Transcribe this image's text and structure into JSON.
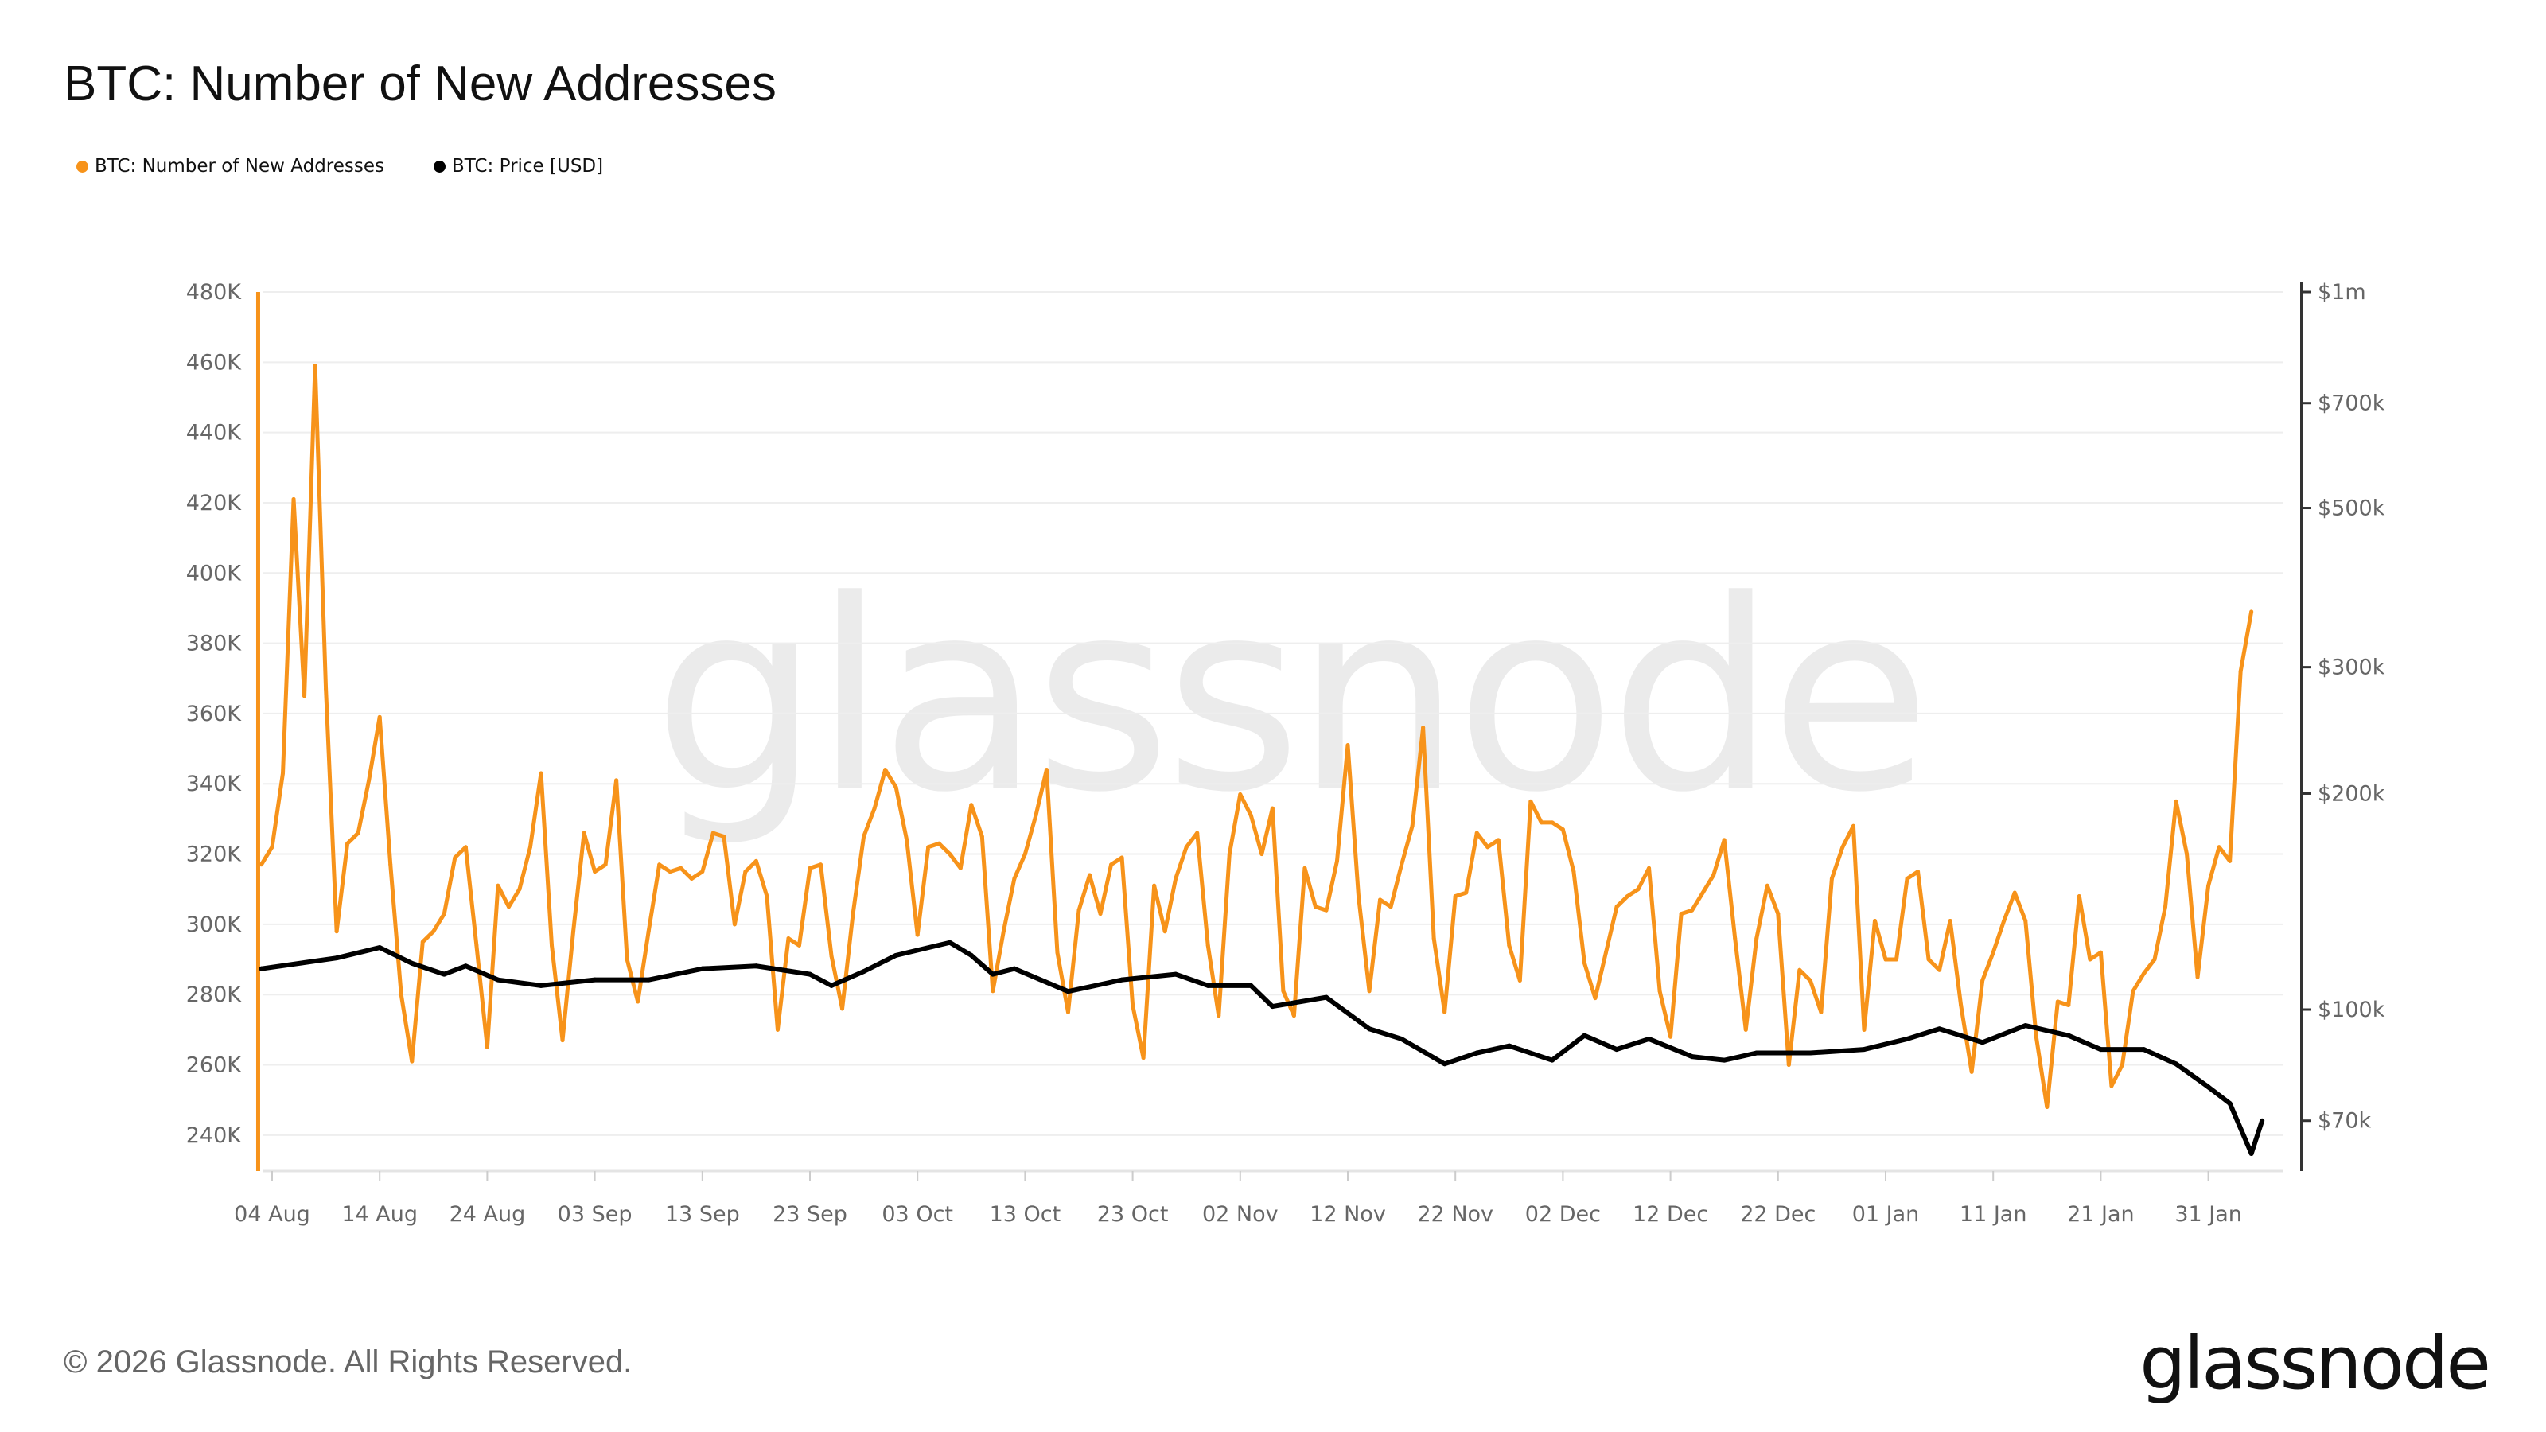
{
  "title": "BTC: Number of New Addresses",
  "legend": [
    {
      "label": "BTC: Number of New Addresses",
      "color": "#f7931a"
    },
    {
      "label": "BTC: Price [USD]",
      "color": "#000000"
    }
  ],
  "footer": {
    "copyright": "© 2026 Glassnode. All Rights Reserved.",
    "logo": "glassnode"
  },
  "watermark": "glassnode",
  "chart_data": {
    "type": "line",
    "title": "BTC: Number of New Addresses",
    "grid": true,
    "legend_position": "top-left",
    "x_tick_labels": [
      "04 Aug",
      "14 Aug",
      "24 Aug",
      "03 Sep",
      "13 Sep",
      "23 Sep",
      "03 Oct",
      "13 Oct",
      "23 Oct",
      "02 Nov",
      "12 Nov",
      "22 Nov",
      "02 Dec",
      "12 Dec",
      "22 Dec",
      "01 Jan",
      "11 Jan",
      "21 Jan",
      "31 Jan"
    ],
    "x_tick_dates": [
      "2025-08-04",
      "2025-08-14",
      "2025-08-24",
      "2025-09-03",
      "2025-09-13",
      "2025-09-23",
      "2025-10-03",
      "2025-10-13",
      "2025-10-23",
      "2025-11-02",
      "2025-11-12",
      "2025-11-22",
      "2025-12-02",
      "2025-12-12",
      "2025-12-22",
      "2026-01-01",
      "2026-01-11",
      "2026-01-21",
      "2026-01-31"
    ],
    "y_left": {
      "ticks": [
        "480K",
        "460K",
        "440K",
        "420K",
        "400K",
        "380K",
        "360K",
        "340K",
        "320K",
        "300K",
        "280K",
        "260K",
        "240K"
      ],
      "tick_values": [
        480000,
        460000,
        440000,
        420000,
        400000,
        380000,
        360000,
        340000,
        320000,
        300000,
        280000,
        260000,
        240000
      ],
      "range": [
        230000,
        480000
      ]
    },
    "y_right": {
      "scale": "log",
      "ticks": [
        "$1m",
        "$700k",
        "$500k",
        "$300k",
        "$200k",
        "$100k",
        "$70k"
      ],
      "tick_values": [
        1000000,
        700000,
        500000,
        300000,
        200000,
        100000,
        70000
      ],
      "range": [
        60000,
        1000000
      ]
    },
    "series": [
      {
        "name": "BTC: Number of New Addresses",
        "color": "#f7931a",
        "axis": "left",
        "start": "2025-08-03",
        "values": [
          317000,
          322000,
          343000,
          421000,
          365000,
          459000,
          367000,
          298000,
          323000,
          326000,
          341000,
          359000,
          317000,
          280000,
          261000,
          295000,
          298000,
          303000,
          319000,
          322000,
          294000,
          265000,
          311000,
          305000,
          310000,
          322000,
          343000,
          294000,
          267000,
          298000,
          326000,
          315000,
          317000,
          341000,
          290000,
          278000,
          298000,
          317000,
          315000,
          316000,
          313000,
          315000,
          326000,
          325000,
          300000,
          315000,
          318000,
          308000,
          270000,
          296000,
          294000,
          316000,
          317000,
          291000,
          276000,
          303000,
          325000,
          333000,
          344000,
          339000,
          324000,
          297000,
          322000,
          323000,
          320000,
          316000,
          334000,
          325000,
          281000,
          298000,
          313000,
          320000,
          331000,
          344000,
          292000,
          275000,
          304000,
          314000,
          303000,
          317000,
          319000,
          277000,
          262000,
          311000,
          298000,
          313000,
          322000,
          326000,
          294000,
          274000,
          320000,
          337000,
          331000,
          320000,
          333000,
          281000,
          274000,
          316000,
          305000,
          304000,
          318000,
          351000,
          308000,
          281000,
          307000,
          305000,
          317000,
          328000,
          356000,
          296000,
          275000,
          308000,
          309000,
          326000,
          322000,
          324000,
          294000,
          284000,
          335000,
          329000,
          329000,
          327000,
          315000,
          289000,
          279000,
          292000,
          305000,
          308000,
          310000,
          316000,
          281000,
          268000,
          303000,
          304000,
          309000,
          314000,
          324000,
          296000,
          270000,
          296000,
          311000,
          303000,
          260000,
          287000,
          284000,
          275000,
          313000,
          322000,
          328000,
          270000,
          301000,
          290000,
          290000,
          313000,
          315000,
          290000,
          287000,
          301000,
          277000,
          258000,
          284000,
          292000,
          301000,
          309000,
          301000,
          268000,
          248000,
          278000,
          277000,
          308000,
          290000,
          292000,
          254000,
          260000,
          281000,
          286000,
          290000,
          305000,
          335000,
          320000,
          285000,
          311000,
          322000,
          318000,
          372000,
          389000
        ]
      },
      {
        "name": "BTC: Price [USD]",
        "color": "#000000",
        "axis": "right",
        "points": [
          [
            "2025-08-03",
            114000
          ],
          [
            "2025-08-10",
            118000
          ],
          [
            "2025-08-14",
            122000
          ],
          [
            "2025-08-17",
            116000
          ],
          [
            "2025-08-20",
            112000
          ],
          [
            "2025-08-22",
            115000
          ],
          [
            "2025-08-25",
            110000
          ],
          [
            "2025-08-29",
            108000
          ],
          [
            "2025-09-03",
            110000
          ],
          [
            "2025-09-08",
            110000
          ],
          [
            "2025-09-13",
            114000
          ],
          [
            "2025-09-18",
            115000
          ],
          [
            "2025-09-23",
            112000
          ],
          [
            "2025-09-25",
            108000
          ],
          [
            "2025-09-28",
            113000
          ],
          [
            "2025-10-01",
            119000
          ],
          [
            "2025-10-06",
            124000
          ],
          [
            "2025-10-08",
            119000
          ],
          [
            "2025-10-10",
            112000
          ],
          [
            "2025-10-12",
            114000
          ],
          [
            "2025-10-17",
            106000
          ],
          [
            "2025-10-22",
            110000
          ],
          [
            "2025-10-27",
            112000
          ],
          [
            "2025-10-30",
            108000
          ],
          [
            "2025-11-03",
            108000
          ],
          [
            "2025-11-05",
            101000
          ],
          [
            "2025-11-10",
            104000
          ],
          [
            "2025-11-14",
            94000
          ],
          [
            "2025-11-17",
            91000
          ],
          [
            "2025-11-21",
            84000
          ],
          [
            "2025-11-24",
            87000
          ],
          [
            "2025-11-27",
            89000
          ],
          [
            "2025-12-01",
            85000
          ],
          [
            "2025-12-04",
            92000
          ],
          [
            "2025-12-07",
            88000
          ],
          [
            "2025-12-10",
            91000
          ],
          [
            "2025-12-14",
            86000
          ],
          [
            "2025-12-17",
            85000
          ],
          [
            "2025-12-20",
            87000
          ],
          [
            "2025-12-25",
            87000
          ],
          [
            "2025-12-30",
            88000
          ],
          [
            "2026-01-03",
            91000
          ],
          [
            "2026-01-06",
            94000
          ],
          [
            "2026-01-10",
            90000
          ],
          [
            "2026-01-14",
            95000
          ],
          [
            "2026-01-18",
            92000
          ],
          [
            "2026-01-21",
            88000
          ],
          [
            "2026-01-25",
            88000
          ],
          [
            "2026-01-28",
            84000
          ],
          [
            "2026-01-31",
            78000
          ],
          [
            "2026-02-02",
            74000
          ],
          [
            "2026-02-04",
            63000
          ],
          [
            "2026-02-05",
            70000
          ]
        ]
      }
    ]
  }
}
